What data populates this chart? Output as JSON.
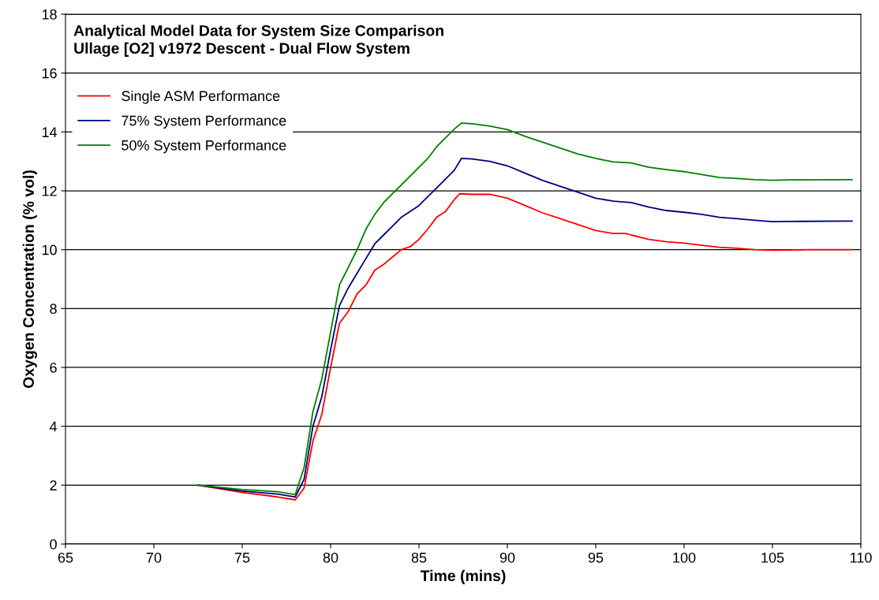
{
  "chart_data": {
    "type": "line",
    "title": "Analytical Model Data for System Size Comparison\nUllage [O2] v1972 Descent - Dual Flow System",
    "xlabel": "Time (mins)",
    "ylabel": "Oxygen Concentration (% vol)",
    "xlim": [
      65,
      110
    ],
    "xticks": [
      65,
      70,
      75,
      80,
      85,
      90,
      95,
      100,
      105,
      110
    ],
    "ylim": [
      0,
      18
    ],
    "yticks": [
      0,
      2,
      4,
      6,
      8,
      10,
      12,
      14,
      16,
      18
    ],
    "grid": "y",
    "legend": "top left",
    "marker": "none",
    "line_style": "solid",
    "series": [
      {
        "name": "Single ASM Performance",
        "color": "#ff0000",
        "x": [
          72.5,
          75,
          77,
          78,
          78.5,
          79,
          79.5,
          80,
          80.5,
          81,
          81.5,
          82,
          82.5,
          83,
          83.5,
          84,
          84.5,
          85,
          85.5,
          86,
          86.5,
          87,
          87.3,
          88,
          89,
          90,
          91,
          92,
          93,
          94,
          95,
          96,
          96.7,
          97,
          98,
          99,
          100,
          101,
          102,
          103,
          104,
          105,
          106,
          107,
          109.5
        ],
        "values": [
          2.0,
          1.75,
          1.6,
          1.5,
          1.9,
          3.5,
          4.4,
          6.0,
          7.5,
          7.9,
          8.5,
          8.8,
          9.3,
          9.5,
          9.75,
          10.0,
          10.1,
          10.35,
          10.7,
          11.1,
          11.3,
          11.7,
          11.9,
          11.88,
          11.88,
          11.75,
          11.5,
          11.25,
          11.05,
          10.85,
          10.65,
          10.55,
          10.55,
          10.5,
          10.35,
          10.27,
          10.22,
          10.15,
          10.08,
          10.05,
          10.0,
          9.98,
          9.99,
          10.0,
          10.0
        ]
      },
      {
        "name": "75% System Performance",
        "color": "#000080",
        "x": [
          72.5,
          75,
          77,
          78,
          78.5,
          79,
          79.5,
          80,
          80.5,
          81,
          81.5,
          82,
          82.5,
          83,
          83.5,
          84,
          84.5,
          85,
          85.5,
          86,
          86.5,
          87,
          87.4,
          88,
          89,
          90,
          91,
          92,
          93,
          94,
          95,
          96,
          97,
          98,
          99,
          100,
          101,
          102,
          103,
          104,
          105,
          106,
          109.5
        ],
        "values": [
          2.0,
          1.8,
          1.7,
          1.6,
          2.2,
          4.0,
          5.0,
          6.6,
          8.1,
          8.7,
          9.2,
          9.7,
          10.2,
          10.5,
          10.8,
          11.1,
          11.3,
          11.5,
          11.8,
          12.1,
          12.4,
          12.7,
          13.1,
          13.08,
          13.0,
          12.85,
          12.6,
          12.35,
          12.15,
          11.95,
          11.75,
          11.65,
          11.6,
          11.45,
          11.33,
          11.27,
          11.2,
          11.1,
          11.05,
          11.0,
          10.95,
          10.96,
          10.97
        ]
      },
      {
        "name": "50% System Performance",
        "color": "#008000",
        "x": [
          72.5,
          75,
          77,
          78,
          78.5,
          79,
          79.5,
          80,
          80.5,
          81,
          81.5,
          82,
          82.5,
          83,
          83.5,
          84,
          84.5,
          85,
          85.5,
          86,
          86.5,
          87,
          87.4,
          88,
          89,
          90,
          91,
          92,
          93,
          94,
          95,
          96,
          97,
          98,
          99,
          100,
          101,
          102,
          103,
          104,
          105,
          106,
          109.5
        ],
        "values": [
          2.0,
          1.85,
          1.78,
          1.68,
          2.6,
          4.5,
          5.6,
          7.2,
          8.8,
          9.4,
          10.0,
          10.7,
          11.2,
          11.6,
          11.9,
          12.2,
          12.5,
          12.8,
          13.1,
          13.5,
          13.8,
          14.1,
          14.3,
          14.28,
          14.2,
          14.08,
          13.85,
          13.65,
          13.45,
          13.25,
          13.1,
          12.98,
          12.95,
          12.8,
          12.72,
          12.65,
          12.55,
          12.45,
          12.42,
          12.38,
          12.36,
          12.37,
          12.38
        ]
      }
    ]
  }
}
